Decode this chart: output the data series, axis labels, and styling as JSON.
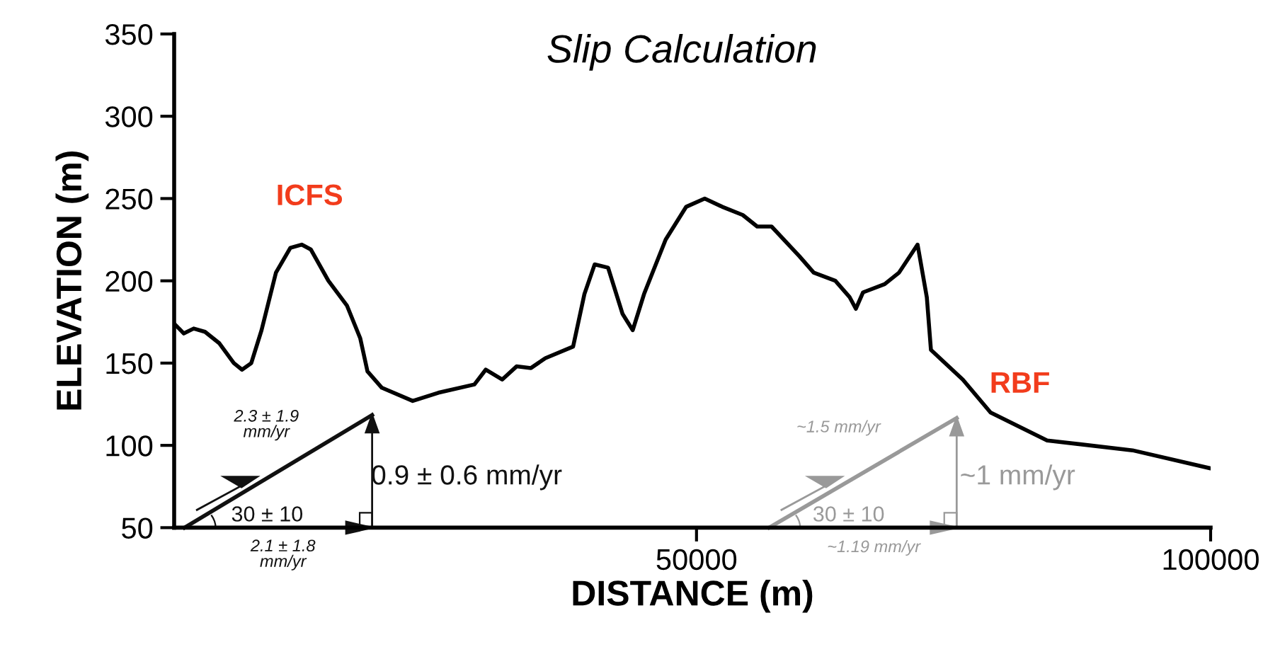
{
  "chart_data": {
    "type": "line",
    "title": "Slip Calculation",
    "xlabel": "DISTANCE (m)",
    "ylabel": "ELEVATION (m)",
    "x": [
      -800,
      138,
      1100,
      2200,
      3600,
      5000,
      5800,
      6700,
      7700,
      9100,
      10500,
      11600,
      12500,
      14200,
      16000,
      17300,
      18000,
      19400,
      22400,
      24900,
      28400,
      29500,
      31100,
      32500,
      33900,
      35300,
      38000,
      39100,
      40100,
      41400,
      42800,
      43800,
      44900,
      47000,
      49000,
      50800,
      52500,
      54500,
      55900,
      57300,
      60000,
      61400,
      63500,
      64900,
      65500,
      66200,
      68300,
      69700,
      71500,
      72400,
      72800,
      75900,
      78600,
      84100,
      92400,
      100000
    ],
    "series": [
      {
        "color": "#000000",
        "values": [
          174,
          168,
          171,
          169,
          162,
          150,
          146,
          150,
          170,
          205,
          220,
          222,
          219,
          200,
          185,
          165,
          145,
          135,
          127,
          132,
          137,
          146,
          140,
          148,
          147,
          153,
          160,
          192,
          210,
          208,
          180,
          170,
          192,
          225,
          245,
          250,
          245,
          240,
          233,
          233,
          215,
          205,
          200,
          190,
          183,
          193,
          198,
          205,
          222,
          190,
          158,
          140,
          120,
          103,
          97,
          86
        ]
      }
    ],
    "xlim": [
      -800,
      100000
    ],
    "ylim": [
      50,
      350
    ],
    "xticks": [
      50000,
      100000
    ],
    "yticks": [
      50,
      100,
      150,
      200,
      250,
      300,
      350
    ],
    "grid": false,
    "marker": "none",
    "line_style": "solid",
    "annotations": [
      {
        "text": "ICFS",
        "x": 11600,
        "y": 222
      },
      "RBF",
      "2.3 ± 1.9\nmm/yr",
      "2.1 ± 1.8\nmm/yr",
      "0.9 ± 0.6 mm/yr",
      "30 ± 10",
      "~1.5 mm/yr",
      "~1.19 mm/yr",
      "~1 mm/yr",
      "30 ± 10"
    ]
  }
}
